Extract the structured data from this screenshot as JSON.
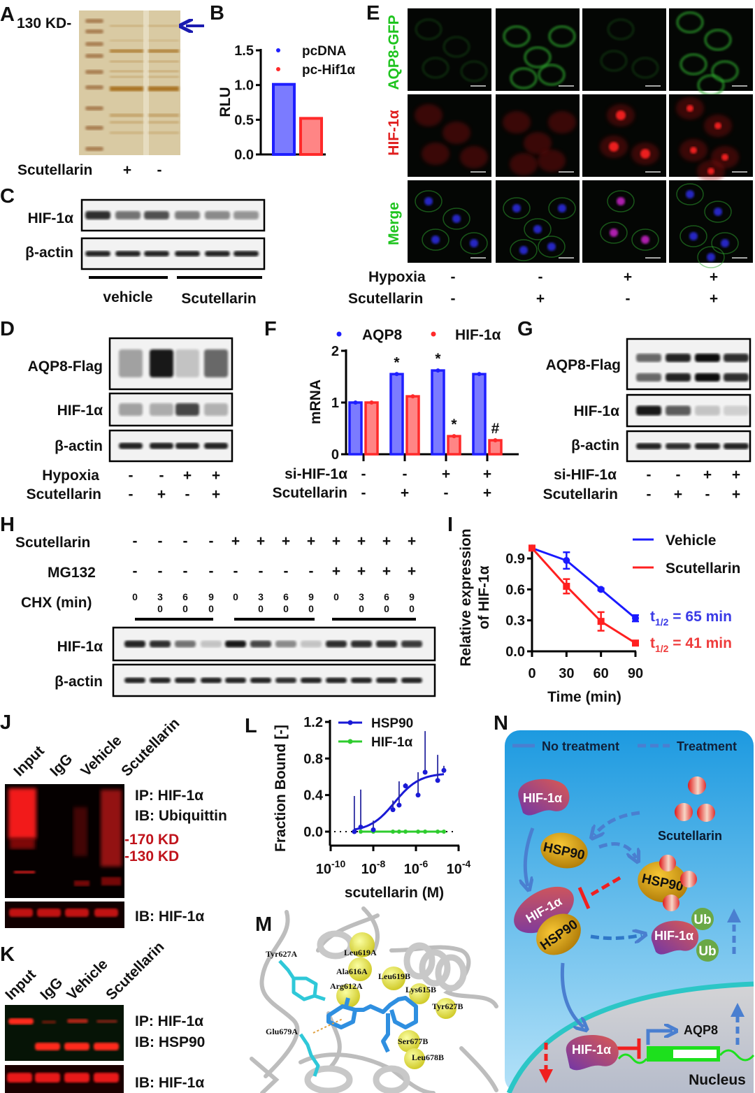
{
  "panels": {
    "A": {
      "letter": "A",
      "marker": "130 KD-",
      "row_label": "Scutellarin",
      "signs": [
        "+",
        "-"
      ]
    },
    "B": {
      "letter": "B"
    },
    "C": {
      "letter": "C",
      "rows": [
        "HIF-1α",
        "β-actin"
      ],
      "groups": [
        "vehicle",
        "Scutellarin"
      ]
    },
    "D": {
      "letter": "D",
      "rows": [
        "AQP8-Flag",
        "HIF-1α",
        "β-actin"
      ],
      "conditions": [
        {
          "label": "Hypoxia",
          "signs": [
            "-",
            "-",
            "+",
            "+"
          ]
        },
        {
          "label": "Scutellarin",
          "signs": [
            "-",
            "+",
            "-",
            "+"
          ]
        }
      ]
    },
    "E": {
      "letter": "E",
      "rows": [
        "AQP8-GFP",
        "HIF-1α",
        "Merge"
      ],
      "row_colors": [
        "#1fc41f",
        "#e01e1e",
        "#1fc41f"
      ],
      "conditions": [
        {
          "label": "Hypoxia",
          "signs": [
            "-",
            "-",
            "+",
            "+"
          ]
        },
        {
          "label": "Scutellarin",
          "signs": [
            "-",
            "+",
            "-",
            "+"
          ]
        }
      ]
    },
    "F": {
      "letter": "F",
      "conditions": [
        {
          "label": "si-HIF-1α",
          "signs": [
            "-",
            "-",
            "+",
            "+"
          ]
        },
        {
          "label": "Scutellarin",
          "signs": [
            "-",
            "+",
            "-",
            "+"
          ]
        }
      ]
    },
    "G": {
      "letter": "G",
      "rows": [
        "AQP8-Flag",
        "HIF-1α",
        "β-actin"
      ],
      "conditions": [
        {
          "label": "si-HIF-1α",
          "signs": [
            "-",
            "-",
            "+",
            "+"
          ]
        },
        {
          "label": "Scutellarin",
          "signs": [
            "-",
            "+",
            "-",
            "+"
          ]
        }
      ]
    },
    "H": {
      "letter": "H",
      "rows": [
        "HIF-1α",
        "β-actin"
      ],
      "conditions": [
        {
          "label": "Scutellarin",
          "signs": [
            "-",
            "-",
            "-",
            "-",
            "+",
            "+",
            "+",
            "+",
            "+",
            "+",
            "+",
            "+"
          ]
        },
        {
          "label": "MG132",
          "signs": [
            "-",
            "-",
            "-",
            "-",
            "-",
            "-",
            "-",
            "-",
            "+",
            "+",
            "+",
            "+"
          ]
        }
      ],
      "chx_label": "CHX (min)",
      "chx_values": [
        "0",
        "30",
        "60",
        "90",
        "0",
        "30",
        "60",
        "90",
        "0",
        "30",
        "60",
        "90"
      ]
    },
    "I": {
      "letter": "I"
    },
    "J": {
      "letter": "J",
      "lanes": [
        "Input",
        "IgG",
        "Vehicle",
        "Scutellarin"
      ],
      "ip_label": "IP: HIF-1α",
      "ib_label": "IB: Ubiquittin",
      "markers": [
        "-170 KD",
        "-130 KD"
      ],
      "marker_color": "#c0141c",
      "bottom_label": "IB: HIF-1α"
    },
    "K": {
      "letter": "K",
      "lanes": [
        "Input",
        "IgG",
        "Vehicle",
        "Scutellarin"
      ],
      "ip_label": "IP: HIF-1α",
      "ib_label": "IB: HSP90",
      "bottom_label": "IB: HIF-1α"
    },
    "L": {
      "letter": "L"
    },
    "M": {
      "letter": "M",
      "residues": [
        "Tyr627A",
        "Leu619A",
        "Ala616A",
        "Arg612A",
        "Leu619B",
        "Lys615B",
        "Tyr627B",
        "Glu679A",
        "Ser677B",
        "Leu678B"
      ]
    },
    "N": {
      "letter": "N",
      "legend": {
        "solid": "No treatment",
        "dashed": "Treatment"
      },
      "hif": "HIF-1α",
      "hsp": "HSP90",
      "drug": "Scutellarin",
      "ub": "Ub",
      "gene": "AQP8",
      "compartment": "Nucleus"
    }
  },
  "chart_data": [
    {
      "panel": "B",
      "type": "bar",
      "categories": [
        "pcDNA",
        "pc-Hif1α"
      ],
      "values": [
        1.01,
        0.52
      ],
      "ylabel": "RLU",
      "ylim": [
        0,
        1.5
      ],
      "yticks": [
        "0.0",
        "0.5",
        "1.0",
        "1.5"
      ],
      "legend": [
        "pcDNA",
        "pc-Hif1α"
      ],
      "legend_placement": "top-right",
      "colors": [
        "#1f1fff",
        "#ff2a2a"
      ]
    },
    {
      "panel": "F",
      "type": "bar",
      "ylabel": "mRNA",
      "ylim": [
        0,
        2
      ],
      "yticks": [
        "0",
        "1",
        "2"
      ],
      "legend_placement": "top",
      "series": [
        {
          "name": "AQP8",
          "values": [
            1.0,
            1.55,
            1.62,
            1.55
          ],
          "marks": [
            "",
            "*",
            "*",
            ""
          ],
          "color": "#1f1fff"
        },
        {
          "name": "HIF-1α",
          "values": [
            1.0,
            1.12,
            0.35,
            0.27
          ],
          "marks": [
            "",
            "",
            "*",
            "#"
          ],
          "color": "#ff2a2a"
        }
      ]
    },
    {
      "panel": "I",
      "type": "line",
      "x": [
        0,
        30,
        60,
        90
      ],
      "xticks": [
        "0",
        "30",
        "60",
        "90"
      ],
      "xlabel": "Time (min)",
      "ylabel": [
        "Relative expression",
        "of HIF-1α"
      ],
      "ylim": [
        0,
        1.0
      ],
      "yticks": [
        "0.0",
        "0.3",
        "0.6",
        "0.9"
      ],
      "legend_placement": "top-right",
      "half_life_symbol": "t",
      "half_life_sub": "1/2",
      "series": [
        {
          "name": "Vehicle",
          "values": [
            1.0,
            0.88,
            0.6,
            0.32
          ],
          "errors": [
            0.01,
            0.08,
            0.01,
            0.03
          ],
          "color": "#1a1aff",
          "half_life": " = 65 min",
          "half_life_color": "#3a3ae6"
        },
        {
          "name": "Scutellarin",
          "values": [
            1.0,
            0.63,
            0.29,
            0.08
          ],
          "errors": [
            0.01,
            0.07,
            0.09,
            0.01
          ],
          "color": "#ff2020",
          "half_life": " = 41 min",
          "half_life_color": "#ee3b3b"
        }
      ]
    },
    {
      "panel": "L",
      "type": "scatter",
      "x_log10": [
        -8.89,
        -8.59,
        -8.0,
        -7.08,
        -6.79,
        -6.49,
        -5.9,
        -5.57,
        -4.98,
        -4.69
      ],
      "xlabel": "scutellarin (M)",
      "ylabel": "Fraction Bound [-]",
      "ylim": [
        -0.15,
        1.2
      ],
      "yticks": [
        "0.0",
        "0.4",
        "0.8",
        "1.2"
      ],
      "xtick_base": "10",
      "xtick_exponents": [
        "-10",
        "-8",
        "-6",
        "-4"
      ],
      "legend_placement": "top-left",
      "series": [
        {
          "name": "HSP90",
          "color": "#1a1ad6",
          "values": [
            0.0,
            0.05,
            0.02,
            0.24,
            0.29,
            0.5,
            0.4,
            0.65,
            0.56,
            0.67
          ],
          "error_top": [
            0.39,
            0.46,
            0.12,
            0.34,
            0.55,
            0.53,
            0.65,
            1.1,
            0.84,
            0.72
          ],
          "fit": {
            "top": 0.64,
            "log_ec50": -7.0,
            "hill": 0.75
          }
        },
        {
          "name": "HIF-1α",
          "color": "#2ecc2e",
          "values": [
            0,
            0,
            0,
            0,
            0,
            0,
            0,
            0,
            0,
            0
          ]
        }
      ]
    }
  ]
}
